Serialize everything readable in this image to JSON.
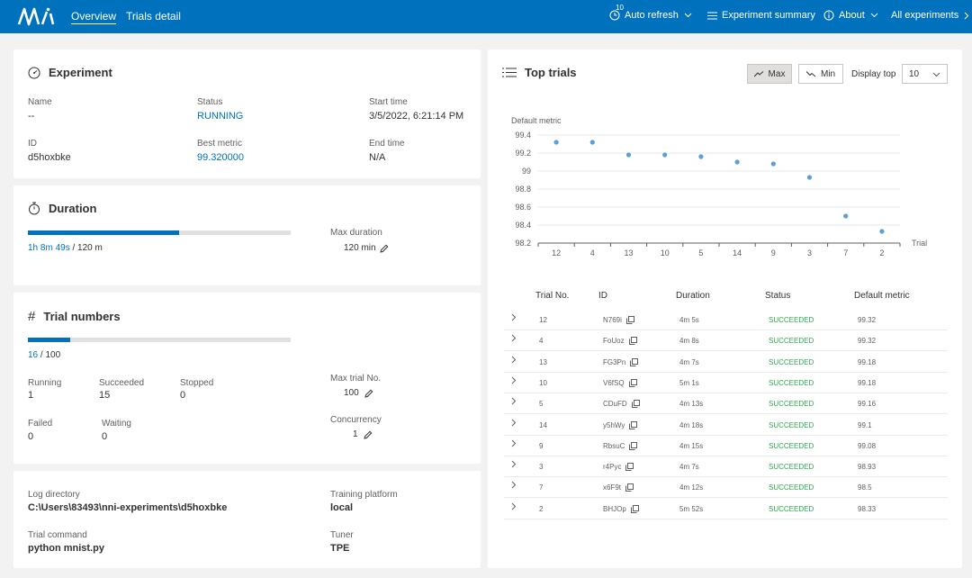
{
  "header": {
    "logo_text": "NNI",
    "nav": {
      "overview": "Overview",
      "trials_detail": "Trials detail"
    },
    "auto_refresh": {
      "label": "Auto refresh",
      "interval": "10"
    },
    "experiment_summary": "Experiment summary",
    "about": "About",
    "all_experiments": "All experiments"
  },
  "experiment": {
    "title": "Experiment",
    "name_label": "Name",
    "name_value": "--",
    "status_label": "Status",
    "status_value": "RUNNING",
    "start_label": "Start time",
    "start_value": "3/5/2022, 6:21:14 PM",
    "id_label": "ID",
    "id_value": "d5hoxbke",
    "best_label": "Best metric",
    "best_value": "99.320000",
    "end_label": "End time",
    "end_value": "N/A"
  },
  "duration": {
    "title": "Duration",
    "elapsed": "1h 8m 49s",
    "total": "/ 120 m",
    "progress": 0.574,
    "max_label": "Max duration",
    "max_value": "120 min"
  },
  "trial_numbers": {
    "title": "Trial numbers",
    "count": "16",
    "total": "/ 100",
    "progress": 0.16,
    "running_label": "Running",
    "running_value": "1",
    "succeeded_label": "Succeeded",
    "succeeded_value": "15",
    "stopped_label": "Stopped",
    "stopped_value": "0",
    "failed_label": "Failed",
    "failed_value": "0",
    "waiting_label": "Waiting",
    "waiting_value": "0",
    "max_label": "Max trial No.",
    "max_value": "100",
    "concurrency_label": "Concurrency",
    "concurrency_value": "1"
  },
  "info": {
    "log_label": "Log directory",
    "log_value": "C:\\Users\\83493\\nni-experiments\\d5hoxbke",
    "platform_label": "Training platform",
    "platform_value": "local",
    "command_label": "Trial command",
    "command_value": "python mnist.py",
    "tuner_label": "Tuner",
    "tuner_value": "TPE"
  },
  "top_trials": {
    "title": "Top trials",
    "max_button": "Max",
    "min_button": "Min",
    "display_label": "Display top",
    "display_value": "10",
    "columns": [
      "Trial No.",
      "ID",
      "Duration",
      "Status",
      "Default metric"
    ],
    "rows": [
      {
        "no": "12",
        "id": "N769i",
        "duration": "4m 5s",
        "status": "SUCCEEDED",
        "metric": "99.32"
      },
      {
        "no": "4",
        "id": "FoUoz",
        "duration": "4m 8s",
        "status": "SUCCEEDED",
        "metric": "99.32"
      },
      {
        "no": "13",
        "id": "FG3Pn",
        "duration": "4m 7s",
        "status": "SUCCEEDED",
        "metric": "99.18"
      },
      {
        "no": "10",
        "id": "V6fSQ",
        "duration": "5m 1s",
        "status": "SUCCEEDED",
        "metric": "99.18"
      },
      {
        "no": "5",
        "id": "CDuFD",
        "duration": "4m 13s",
        "status": "SUCCEEDED",
        "metric": "99.16"
      },
      {
        "no": "14",
        "id": "y5hWy",
        "duration": "4m 18s",
        "status": "SUCCEEDED",
        "metric": "99.1"
      },
      {
        "no": "9",
        "id": "RbsuC",
        "duration": "4m 15s",
        "status": "SUCCEEDED",
        "metric": "99.08"
      },
      {
        "no": "3",
        "id": "r4Pyc",
        "duration": "4m 7s",
        "status": "SUCCEEDED",
        "metric": "98.93"
      },
      {
        "no": "7",
        "id": "x6F9t",
        "duration": "4m 12s",
        "status": "SUCCEEDED",
        "metric": "98.5"
      },
      {
        "no": "2",
        "id": "BHJOp",
        "duration": "5m 52s",
        "status": "SUCCEEDED",
        "metric": "98.33"
      }
    ]
  },
  "chart_data": {
    "type": "scatter",
    "ylabel": "Default metric",
    "xlabel": "Trial",
    "categories": [
      "12",
      "4",
      "13",
      "10",
      "5",
      "14",
      "9",
      "3",
      "7",
      "2"
    ],
    "values": [
      99.32,
      99.32,
      99.18,
      99.18,
      99.16,
      99.1,
      99.08,
      98.93,
      98.5,
      98.33
    ],
    "ylim": [
      98.2,
      99.4
    ],
    "yticks": [
      "98.2",
      "98.4",
      "98.6",
      "98.8",
      "99",
      "99.2",
      "99.4"
    ],
    "grid": true,
    "point_color": "#5aa0d6"
  },
  "colors": {
    "brand": "#0071bc",
    "success": "#2fa850"
  }
}
